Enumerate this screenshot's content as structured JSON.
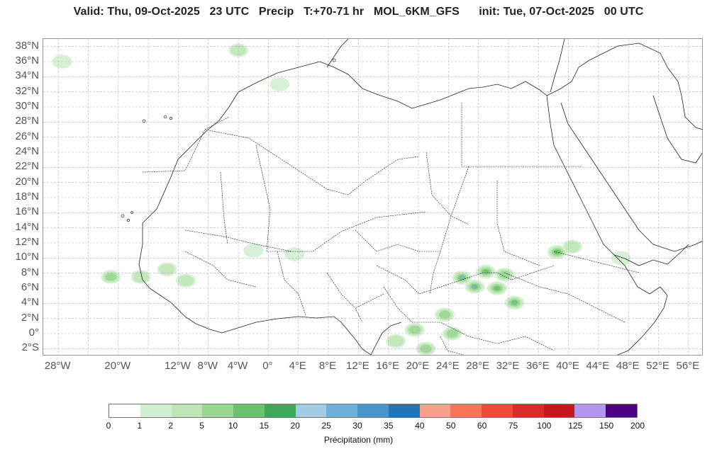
{
  "title": "Valid: Thu, 09-Oct-2025   23 UTC   Precip   T:+70-71 hr   MOL_6KM_GFS      init: Tue, 07-Oct-2025   00 UTC",
  "map": {
    "lat_labels": [
      "38°N",
      "36°N",
      "34°N",
      "32°N",
      "30°N",
      "28°N",
      "26°N",
      "24°N",
      "22°N",
      "20°N",
      "18°N",
      "16°N",
      "14°N",
      "12°N",
      "10°N",
      "8°N",
      "6°N",
      "4°N",
      "2°N",
      "0°",
      "2°S"
    ],
    "lat_values": [
      38,
      36,
      34,
      32,
      30,
      28,
      26,
      24,
      22,
      20,
      18,
      16,
      14,
      12,
      10,
      8,
      6,
      4,
      2,
      0,
      -2
    ],
    "lon_labels": [
      "28°W",
      "20°W",
      "12°W",
      "8°W",
      "4°W",
      "0°",
      "4°E",
      "8°E",
      "12°E",
      "16°E",
      "20°E",
      "24°E",
      "28°E",
      "32°E",
      "36°E",
      "40°E",
      "44°E",
      "48°E",
      "52°E",
      "56°E"
    ],
    "lon_values": [
      -28,
      -20,
      -12,
      -8,
      -4,
      0,
      4,
      8,
      12,
      16,
      20,
      24,
      28,
      32,
      36,
      40,
      44,
      48,
      52,
      56
    ],
    "lon_range": [
      -30,
      58
    ],
    "lat_range": [
      -3,
      39
    ],
    "grid": true,
    "precip_areas": [
      {
        "lon": 25.8,
        "lat": 7.4,
        "level": 7
      },
      {
        "lon": 27.5,
        "lat": 6.2,
        "level": 7
      },
      {
        "lon": 30.5,
        "lat": 6.0,
        "level": 4
      },
      {
        "lon": 29.0,
        "lat": 8.2,
        "level": 4
      },
      {
        "lon": 31.5,
        "lat": 7.8,
        "level": 3
      },
      {
        "lon": 32.8,
        "lat": 4.1,
        "level": 4
      },
      {
        "lon": 38.5,
        "lat": 10.8,
        "level": 4
      },
      {
        "lon": 40.5,
        "lat": 11.5,
        "level": 2
      },
      {
        "lon": 23.5,
        "lat": 2.5,
        "level": 3
      },
      {
        "lon": 24.5,
        "lat": 0.0,
        "level": 3
      },
      {
        "lon": 19.5,
        "lat": 0.5,
        "level": 3
      },
      {
        "lon": 17.0,
        "lat": -1.0,
        "level": 2
      },
      {
        "lon": 21.0,
        "lat": -2.0,
        "level": 3
      },
      {
        "lon": -21.0,
        "lat": 7.5,
        "level": 3
      },
      {
        "lon": -17.0,
        "lat": 7.5,
        "level": 2
      },
      {
        "lon": -13.5,
        "lat": 8.5,
        "level": 2
      },
      {
        "lon": -11.0,
        "lat": 7.0,
        "level": 2
      },
      {
        "lon": -27.5,
        "lat": 36.0,
        "level": 1
      },
      {
        "lon": -4.0,
        "lat": 37.5,
        "level": 2
      },
      {
        "lon": 1.5,
        "lat": 33.0,
        "level": 1
      },
      {
        "lon": 3.5,
        "lat": 10.5,
        "level": 1
      },
      {
        "lon": -2.0,
        "lat": 11.0,
        "level": 1
      },
      {
        "lon": 47.0,
        "lat": 10.0,
        "level": 1
      }
    ]
  },
  "colorbar": {
    "colors": [
      "#ffffff",
      "#d0efd0",
      "#bfe5b5",
      "#98d68e",
      "#6cc16c",
      "#3ea85a",
      "#a3cbe3",
      "#6fb0d8",
      "#4896c9",
      "#2174b5",
      "#f9a08a",
      "#f87458",
      "#ef4a37",
      "#da2a29",
      "#c5171c",
      "#b496f0",
      "#4b0082"
    ],
    "ticks": [
      "0",
      "1",
      "2",
      "5",
      "10",
      "15",
      "20",
      "25",
      "30",
      "35",
      "40",
      "50",
      "60",
      "75",
      "100",
      "125",
      "150",
      "200"
    ],
    "label": "Précipitation (mm)"
  }
}
